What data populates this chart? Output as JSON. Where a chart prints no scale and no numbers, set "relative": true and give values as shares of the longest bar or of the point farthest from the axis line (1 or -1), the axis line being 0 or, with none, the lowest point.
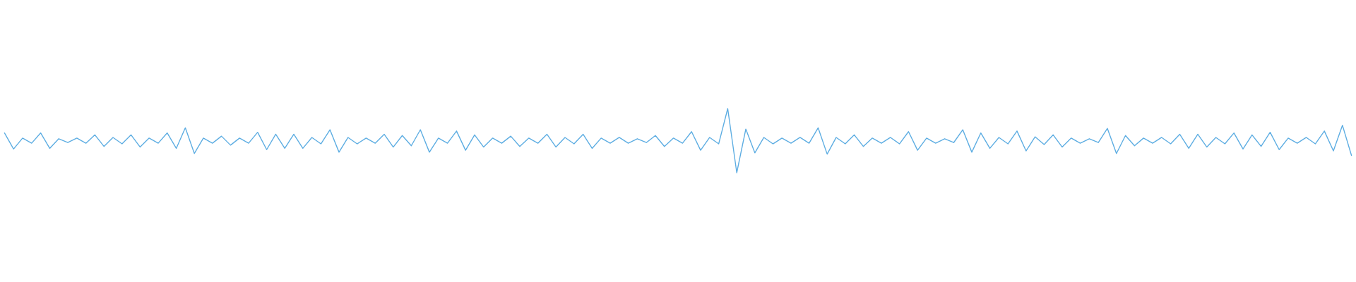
{
  "chart_data": {
    "type": "line",
    "relative": true,
    "color": "#5dade2",
    "categories": [
      null,
      null,
      null,
      null,
      null,
      null,
      null,
      null,
      null,
      null,
      null,
      null,
      null,
      null,
      null,
      null,
      null,
      null,
      null,
      null,
      null,
      null,
      null,
      null,
      null,
      null,
      null,
      null,
      null,
      null,
      null,
      null,
      null,
      null,
      null,
      null,
      null,
      null,
      null,
      null,
      null,
      null,
      null,
      null,
      null,
      null,
      null,
      null,
      null,
      null,
      null,
      null,
      null,
      null,
      null,
      null,
      null,
      null,
      null,
      null,
      null,
      null,
      null,
      null,
      null,
      null,
      null,
      null,
      null,
      null,
      null,
      null,
      null,
      null,
      null,
      null,
      null,
      null,
      null,
      null,
      null,
      null,
      null,
      null,
      null,
      null,
      null,
      null,
      null,
      null,
      null,
      null,
      null,
      null,
      null,
      null,
      null,
      null,
      null,
      null,
      null,
      null,
      null,
      null,
      null,
      null,
      null,
      null,
      null,
      null,
      null,
      null,
      null,
      null,
      null,
      null,
      null,
      null,
      null,
      null,
      null,
      null,
      null,
      null,
      null,
      null,
      null,
      null,
      null,
      null,
      null,
      null,
      null,
      null,
      null,
      null,
      null,
      null,
      null,
      null,
      null,
      null,
      null,
      null,
      null,
      null,
      null,
      null,
      null,
      null
    ],
    "values": [
      0.62,
      0.37,
      0.54,
      0.46,
      0.62,
      0.38,
      0.53,
      0.47,
      0.54,
      0.46,
      0.59,
      0.41,
      0.55,
      0.45,
      0.59,
      0.4,
      0.54,
      0.46,
      0.62,
      0.38,
      0.7,
      0.3,
      0.54,
      0.46,
      0.57,
      0.43,
      0.54,
      0.46,
      0.63,
      0.36,
      0.6,
      0.38,
      0.6,
      0.38,
      0.55,
      0.45,
      0.67,
      0.32,
      0.55,
      0.45,
      0.54,
      0.46,
      0.6,
      0.4,
      0.58,
      0.42,
      0.67,
      0.32,
      0.54,
      0.46,
      0.65,
      0.35,
      0.59,
      0.4,
      0.54,
      0.46,
      0.57,
      0.41,
      0.54,
      0.46,
      0.6,
      0.4,
      0.55,
      0.45,
      0.6,
      0.38,
      0.54,
      0.46,
      0.55,
      0.46,
      0.53,
      0.47,
      0.58,
      0.41,
      0.54,
      0.46,
      0.64,
      0.35,
      0.55,
      0.45,
      1.0,
      0.0,
      0.68,
      0.31,
      0.55,
      0.45,
      0.54,
      0.46,
      0.55,
      0.46,
      0.7,
      0.29,
      0.55,
      0.45,
      0.59,
      0.41,
      0.54,
      0.46,
      0.55,
      0.45,
      0.64,
      0.35,
      0.54,
      0.46,
      0.53,
      0.47,
      0.67,
      0.32,
      0.62,
      0.38,
      0.55,
      0.45,
      0.65,
      0.34,
      0.56,
      0.44,
      0.59,
      0.4,
      0.54,
      0.46,
      0.53,
      0.47,
      0.69,
      0.3,
      0.58,
      0.42,
      0.54,
      0.46,
      0.55,
      0.45,
      0.6,
      0.38,
      0.6,
      0.4,
      0.55,
      0.45,
      0.62,
      0.37,
      0.59,
      0.41,
      0.63,
      0.36,
      0.54,
      0.46,
      0.55,
      0.45,
      0.65,
      0.34,
      0.74,
      0.27
    ]
  }
}
